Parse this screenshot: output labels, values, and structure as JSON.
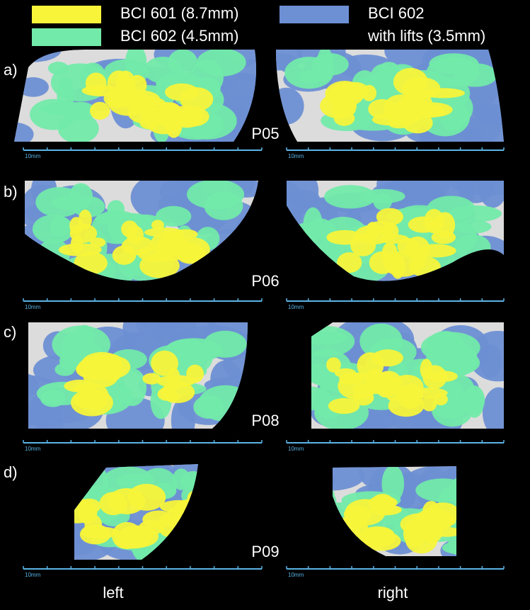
{
  "legend": [
    {
      "label": "BCI 601 (8.7mm)",
      "color": "#f7f43a"
    },
    {
      "label": "BCI 602 (4.5mm)",
      "color": "#72eaa9"
    },
    {
      "label": [
        "BCI 602",
        "with lifts (3.5mm)"
      ],
      "color": "#6d8fd3"
    }
  ],
  "panels": [
    {
      "row_label": "a)",
      "participant": "P05",
      "scale_labels": [
        "10mm",
        "10mm"
      ]
    },
    {
      "row_label": "b)",
      "participant": "P06",
      "scale_labels": [
        "10mm",
        "10mm"
      ]
    },
    {
      "row_label": "c)",
      "participant": "P08",
      "scale_labels": [
        "10mm",
        "10mm"
      ]
    },
    {
      "row_label": "d)",
      "participant": "P09",
      "scale_labels": [
        "10mm",
        "10mm"
      ]
    }
  ],
  "columns": [
    "left",
    "right"
  ]
}
